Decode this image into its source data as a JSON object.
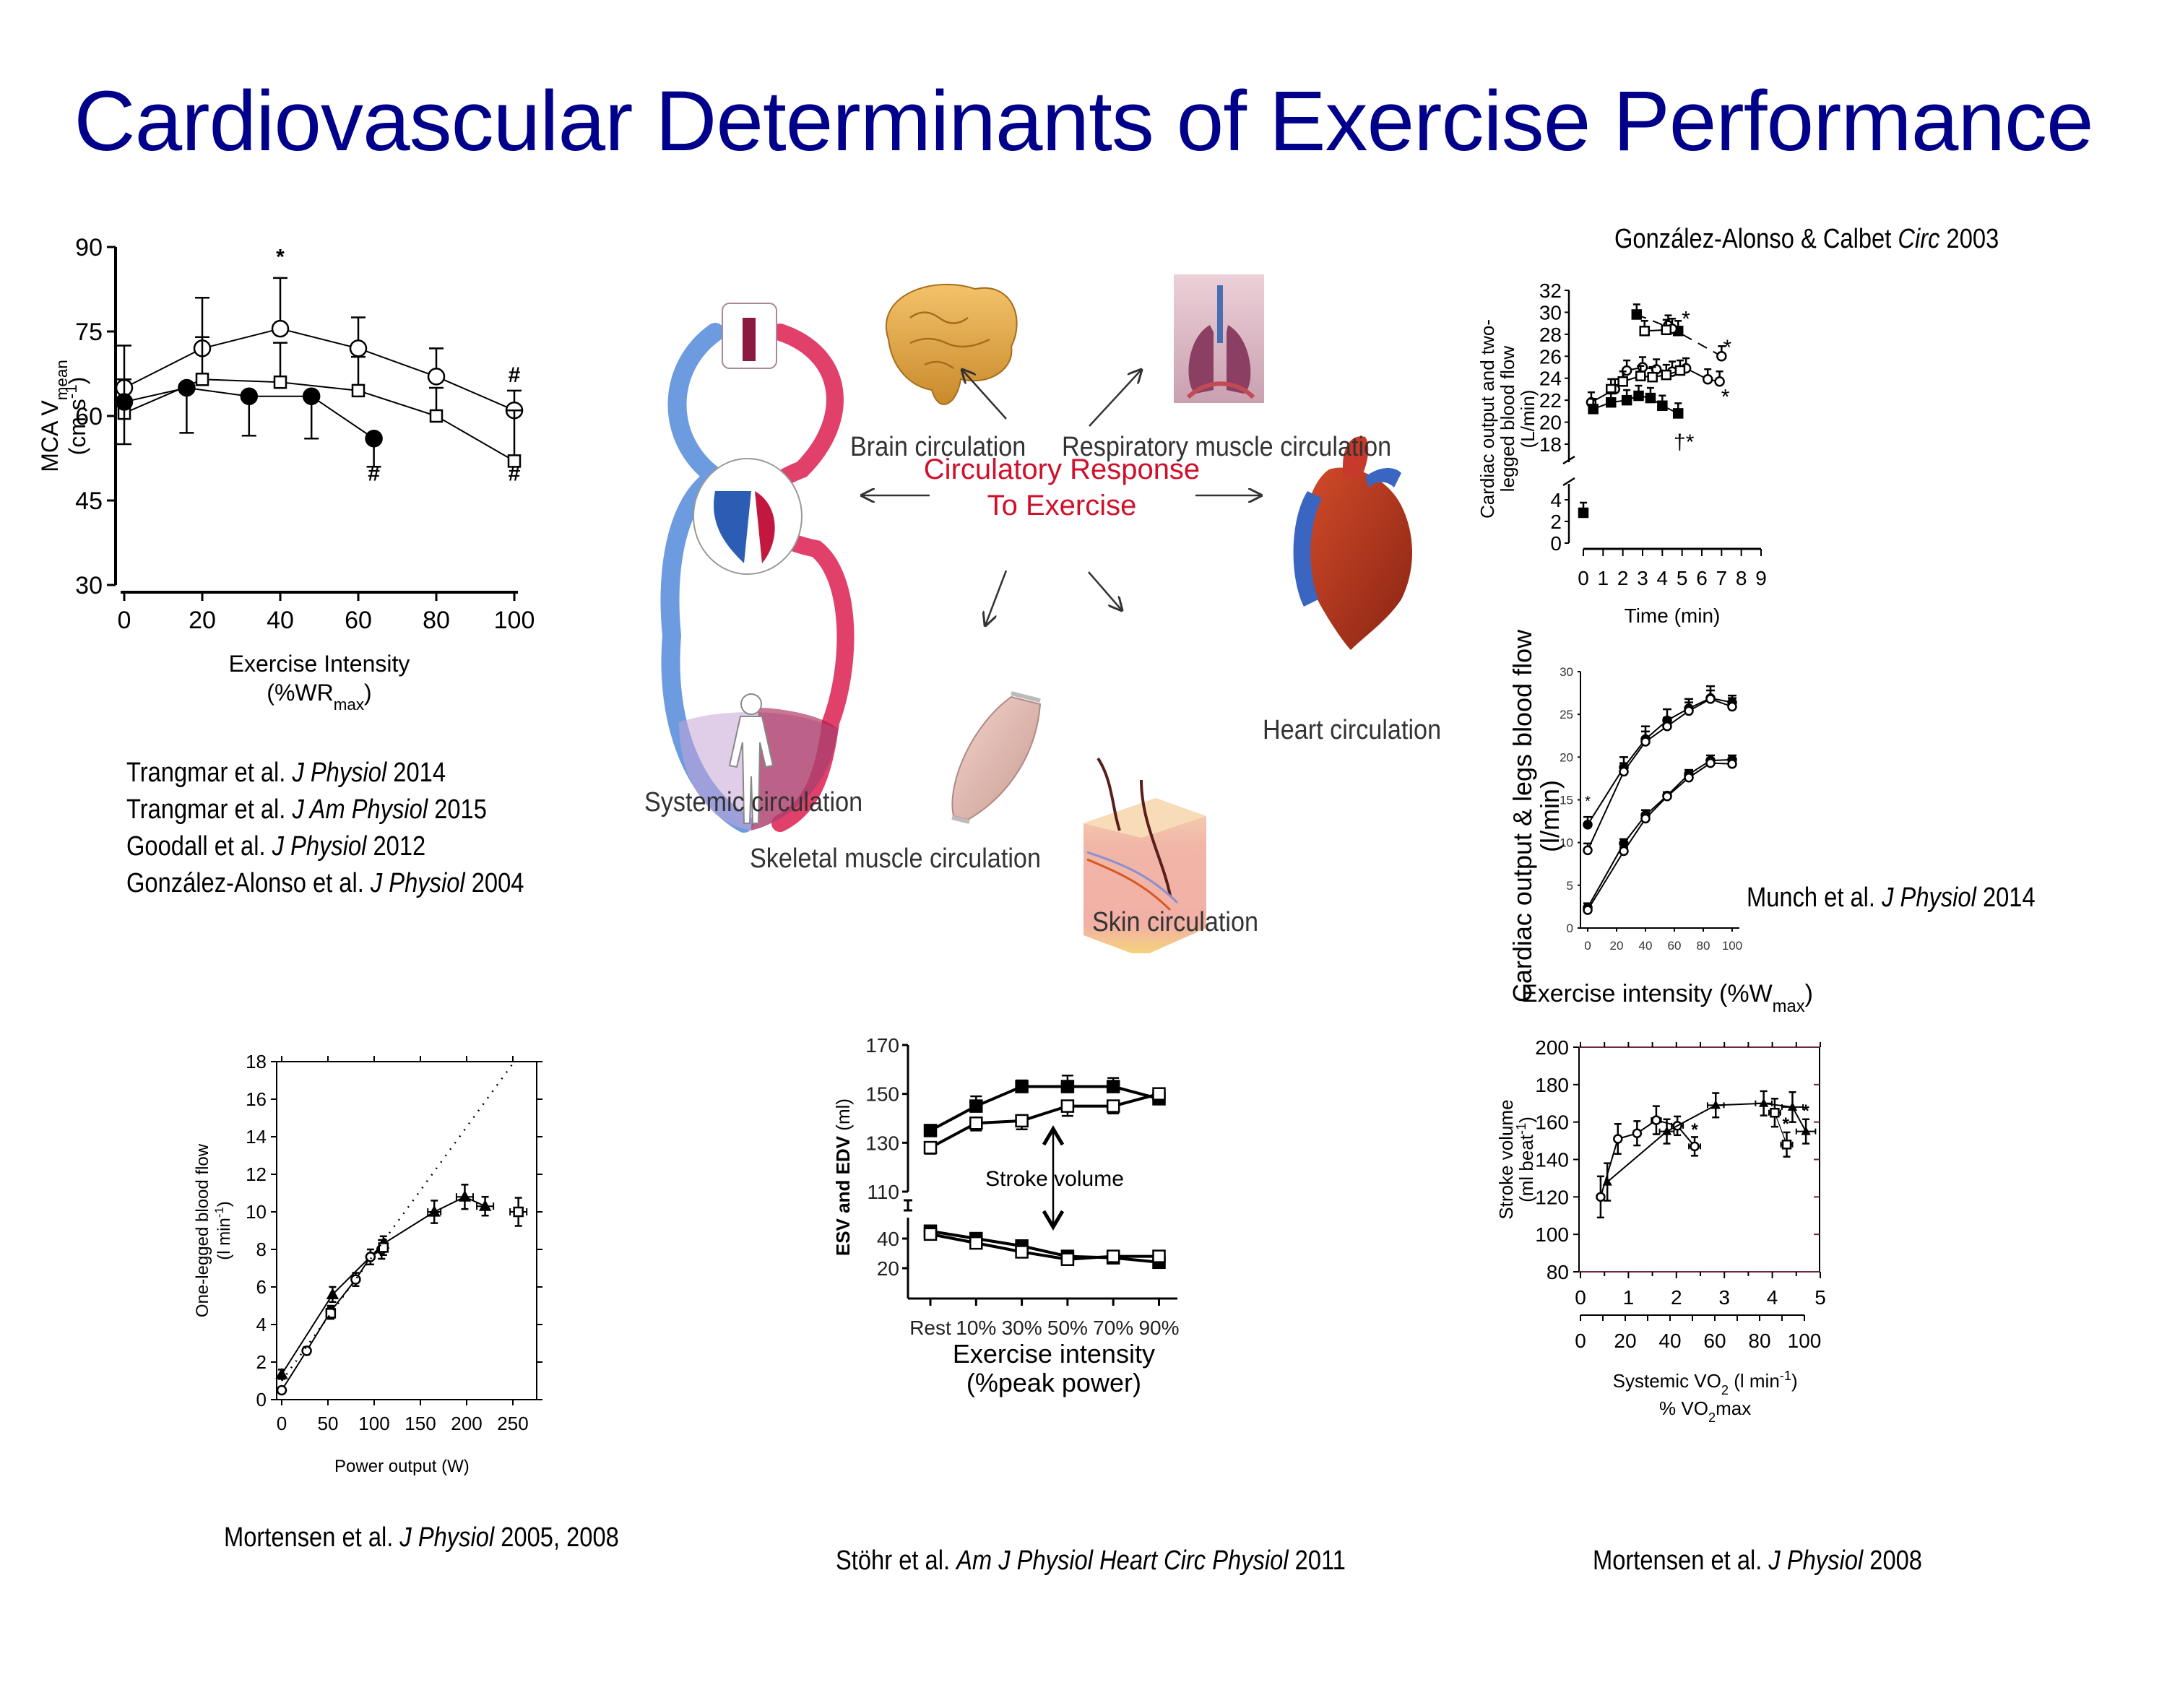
{
  "slide": {
    "title": "Cardiovascular Determinants of Exercise Performance"
  },
  "citations": {
    "top_left": [
      {
        "authors": "Trangmar et al. ",
        "journal": "J Physiol",
        "year": " 2014"
      },
      {
        "authors": "Trangmar et al. ",
        "journal": "J Am Physiol",
        "year": " 2015"
      },
      {
        "authors": "Goodall et al. ",
        "journal": "J Physiol",
        "year": " 2012"
      },
      {
        "authors": "González-Alonso et al. ",
        "journal": "J Physiol",
        "year": "  2004"
      }
    ],
    "top_right": {
      "authors": "González-Alonso & Calbet ",
      "journal": "Circ",
      "year": " 2003"
    },
    "mid_right": {
      "authors": "Munch et al. ",
      "journal": "J Physiol",
      "year": "  2014"
    },
    "bottom_left": {
      "authors": "Mortensen et al. ",
      "journal": "J Physiol",
      "year": "  2005, 2008"
    },
    "bottom_center": {
      "authors": "Stöhr et al. ",
      "journal": "Am J Physiol Heart Circ Physiol",
      "year": " 2011"
    },
    "bottom_right": {
      "authors": "Mortensen et al. ",
      "journal": "J Physiol",
      "year": "  2008"
    }
  },
  "diagram": {
    "center_line1": "Circulatory Response",
    "center_line2": "To Exercise",
    "labels": {
      "brain": "Brain circulation",
      "respiratory": "Respiratory muscle circulation",
      "heart": "Heart circulation",
      "systemic": "Systemic circulation",
      "skeletal": "Skeletal muscle circulation",
      "skin": "Skin circulation"
    },
    "colors": {
      "center": "#d0102b",
      "artery": "#d8264f",
      "vein": "#4a7fd0"
    }
  },
  "chart_data": [
    {
      "id": "mca",
      "type": "line",
      "title": "",
      "xlabel": "Exercise Intensity",
      "xlabel2": "(%WR",
      "xlabel2_sub": "max",
      "xlabel2_end": ")",
      "ylabel": "MCA V",
      "ylabel_sub": "mean",
      "ylabel2": "(cm s",
      "ylabel2_sup": "-1",
      "ylabel2_end": ")",
      "xlim": [
        0,
        100
      ],
      "ylim": [
        30,
        90
      ],
      "xticks": [
        0,
        20,
        40,
        60,
        80,
        100
      ],
      "yticks": [
        30,
        45,
        60,
        75,
        90
      ],
      "grid": false,
      "series": [
        {
          "name": "open-circle",
          "marker": "circle-open",
          "x": [
            0,
            20,
            40,
            60,
            80,
            100
          ],
          "y": [
            65,
            72,
            75.5,
            72,
            67,
            61
          ],
          "err": [
            7.5,
            9,
            9,
            5.5,
            5,
            3.5
          ],
          "err_dir": "up"
        },
        {
          "name": "open-square",
          "marker": "square-open",
          "x": [
            0,
            20,
            40,
            60,
            80,
            100
          ],
          "y": [
            60.5,
            66.5,
            66,
            64.5,
            60,
            52
          ],
          "err": [
            6,
            7.5,
            7,
            6,
            5,
            9
          ],
          "err_dir": "up"
        },
        {
          "name": "filled-circle",
          "marker": "circle-filled",
          "x": [
            0,
            16,
            32,
            48,
            64
          ],
          "y": [
            62.5,
            65,
            63.5,
            63.5,
            56
          ],
          "err": [
            7.5,
            8,
            7,
            7.5,
            5
          ],
          "err_dir": "down"
        }
      ],
      "annotations": [
        {
          "text": "*",
          "x": 40,
          "y": 87
        },
        {
          "text": "#",
          "x": 64,
          "y": 48.5
        },
        {
          "text": "#",
          "x": 100,
          "y": 66
        },
        {
          "text": "#",
          "x": 100,
          "y": 48.5
        }
      ]
    },
    {
      "id": "gonzalez",
      "type": "line",
      "title": "González-Alonso & Calbet Circ 2003",
      "xlabel": "Time (min)",
      "ylabel": "Cardiac output and two-",
      "ylabel2": "legged blood flow",
      "ylabel3": "(L/min)",
      "xlim": [
        0,
        9
      ],
      "ylim_upper": [
        18,
        32
      ],
      "ylim_lower": [
        0,
        4
      ],
      "xticks": [
        0,
        1,
        2,
        3,
        4,
        5,
        6,
        7,
        8,
        9
      ],
      "yticks_upper": [
        18,
        20,
        22,
        24,
        26,
        28,
        30,
        32
      ],
      "yticks_lower": [
        0,
        2,
        4
      ],
      "axis_break": true,
      "grid": false,
      "series": [
        {
          "name": "cardiac-output-open-circle",
          "marker": "circle-open",
          "x": [
            0.4,
            1.6,
            2.2,
            3.0,
            3.7,
            4.5,
            5.2,
            6.3,
            6.9
          ],
          "y": [
            21.8,
            23,
            24.7,
            25,
            24.8,
            24.6,
            24.9,
            23.9,
            23.7
          ]
        },
        {
          "name": "cardiac-output-open-square",
          "marker": "square-open",
          "x": [
            1.4,
            2.0,
            2.9,
            3.5,
            4.2,
            4.9
          ],
          "y": [
            23,
            23.7,
            24.2,
            24.1,
            24.3,
            24.7
          ]
        },
        {
          "name": "leg-flow-filled-square",
          "marker": "square-filled",
          "x": [
            0.5,
            1.4,
            2.2,
            2.8,
            3.4,
            4.0,
            4.8
          ],
          "y": [
            21.2,
            21.8,
            22,
            22.4,
            22.2,
            21.5,
            20.8
          ]
        },
        {
          "name": "heat-filled-square-dashed",
          "marker": "square-filled",
          "dashed": true,
          "x": [
            2.7,
            4.8
          ],
          "y": [
            29.8,
            28.3
          ]
        },
        {
          "name": "heat-open-circle-dashed",
          "marker": "circle-open",
          "dashed": true,
          "x": [
            4.3,
            4.5,
            7.0
          ],
          "y": [
            28.8,
            28.5,
            26
          ]
        },
        {
          "name": "heat-open-square",
          "marker": "square-open",
          "x": [
            3.1,
            4.2
          ],
          "y": [
            28.3,
            28.4
          ]
        },
        {
          "name": "rest",
          "marker": "square-filled",
          "x": [
            0
          ],
          "y": [
            2.8
          ]
        }
      ],
      "annotations": [
        {
          "text": "*",
          "x": 4.9,
          "y": 29.4
        },
        {
          "text": "*",
          "x": 7.0,
          "y": 26.8
        },
        {
          "text": "*",
          "x": 6.9,
          "y": 22.3
        },
        {
          "text": "†*",
          "x": 4.8,
          "y": 18.2
        }
      ]
    },
    {
      "id": "munch",
      "type": "line",
      "title": "",
      "xlabel": "Exercise intensity (%W",
      "xlabel_sub": "max",
      "xlabel_end": ")",
      "ylabel": "Cardiac output & legs blood flow",
      "ylabel2": "(l/min)",
      "xlim": [
        0,
        100
      ],
      "ylim": [
        0,
        30
      ],
      "xticks": [
        0,
        20,
        40,
        60,
        80,
        100
      ],
      "yticks": [
        0,
        5,
        10,
        15,
        20,
        25,
        30
      ],
      "grid": false,
      "series": [
        {
          "name": "cardiac-output-filled",
          "marker": "circle-filled",
          "x": [
            0,
            25,
            40,
            55,
            70,
            85,
            100
          ],
          "y": [
            12.1,
            18.8,
            22.1,
            24.3,
            25.7,
            26.9,
            26.4
          ],
          "err": [
            0.9,
            1.2,
            1.5,
            1.3,
            1.1,
            1.4,
            0.8
          ]
        },
        {
          "name": "cardiac-output-open",
          "marker": "circle-open",
          "x": [
            0,
            25,
            40,
            55,
            70,
            85,
            100
          ],
          "y": [
            9.1,
            18.3,
            21.8,
            23.6,
            25.4,
            26.8,
            25.9
          ],
          "err": [
            0.8,
            1.0,
            1.2,
            1.0,
            1.0,
            1.0,
            1.0
          ]
        },
        {
          "name": "legs-flow-filled",
          "marker": "circle-filled",
          "x": [
            0,
            25,
            40,
            55,
            70,
            85,
            100
          ],
          "y": [
            2.4,
            9.9,
            13.2,
            15.5,
            18.0,
            19.6,
            19.7
          ],
          "err": [
            0.5,
            0.5,
            0.6,
            0.4,
            0.5,
            0.6,
            0.5
          ]
        },
        {
          "name": "legs-flow-open",
          "marker": "circle-open",
          "x": [
            0,
            25,
            40,
            55,
            70,
            85,
            100
          ],
          "y": [
            2.1,
            9.0,
            12.8,
            15.4,
            17.6,
            19.3,
            19.2
          ],
          "err": [
            0.4,
            0.4,
            0.5,
            0.4,
            0.4,
            0.5,
            0.5
          ]
        }
      ],
      "annotations": [
        {
          "text": "*",
          "x": 0,
          "y": 14.3
        }
      ]
    },
    {
      "id": "mortensen-flow",
      "type": "line",
      "title": "",
      "xlabel": "Power output (W)",
      "ylabel": "One-legged blood flow",
      "ylabel2": "(l min",
      "ylabel2_sup": "-1",
      "ylabel2_end": ")",
      "xlim": [
        -5,
        275
      ],
      "ylim": [
        0,
        18
      ],
      "xticks": [
        0,
        50,
        100,
        150,
        200,
        250
      ],
      "yticks": [
        0,
        2,
        4,
        6,
        8,
        10,
        12,
        14,
        16,
        18
      ],
      "grid": false,
      "series": [
        {
          "name": "filled-triangle",
          "marker": "triangle-filled",
          "x": [
            0,
            55,
            110,
            165,
            198,
            220
          ],
          "y": [
            1.35,
            5.6,
            8.3,
            10.0,
            10.8,
            10.3
          ],
          "err": [
            0.25,
            0.4,
            0.4,
            0.6,
            0.65,
            0.5
          ],
          "xerr": [
            0,
            0,
            0,
            7,
            9,
            9
          ]
        },
        {
          "name": "open-circle",
          "marker": "circle-open",
          "x": [
            0,
            27,
            53,
            80,
            96,
            108
          ],
          "y": [
            0.5,
            2.6,
            4.7,
            6.4,
            7.6,
            8.0
          ],
          "err": [
            0.1,
            0.2,
            0.3,
            0.35,
            0.4,
            0.5
          ],
          "xerr": [
            0,
            0,
            0,
            0,
            0,
            0
          ]
        },
        {
          "name": "open-square",
          "marker": "square-open",
          "x": [
            53,
            110,
            256
          ],
          "y": [
            4.6,
            8.1,
            10.0
          ],
          "err": [
            0.3,
            0.4,
            0.75
          ],
          "xerr": [
            0,
            0,
            9
          ]
        },
        {
          "name": "linear-extrapolation",
          "style": "dotted",
          "x": [
            0,
            250
          ],
          "y": [
            1.0,
            17.9
          ]
        }
      ]
    },
    {
      "id": "stohr",
      "type": "line",
      "title": "",
      "xlabel": "Exercise intensity",
      "xlabel2": "(%peak power)",
      "ylabel": "ESV and EDV",
      "ylabel_unit": " (ml)",
      "categories": [
        "Rest",
        "10%",
        "30%",
        "50%",
        "70%",
        "90%"
      ],
      "yticks": [
        20,
        40,
        110,
        130,
        150,
        170
      ],
      "axis_break": true,
      "annotation": "Stroke volume",
      "grid": false,
      "series": [
        {
          "name": "EDV-filled",
          "marker": "square-filled",
          "y": [
            135,
            145,
            153,
            153,
            153,
            148
          ],
          "err": [
            1.5,
            4,
            2.5,
            4.5,
            3.5,
            2
          ]
        },
        {
          "name": "EDV-open",
          "marker": "square-open",
          "y": [
            128,
            138,
            139,
            145,
            145,
            150
          ],
          "err": [
            2.5,
            3,
            3.5,
            4,
            3,
            4
          ]
        },
        {
          "name": "ESV-filled",
          "marker": "square-filled",
          "y": [
            45,
            40,
            35,
            28,
            27,
            24
          ],
          "err": [
            0,
            0,
            0,
            0,
            0,
            0
          ]
        },
        {
          "name": "ESV-open",
          "marker": "square-open",
          "y": [
            43,
            37,
            31,
            26,
            28,
            28
          ],
          "err": [
            0,
            0,
            0,
            0,
            0,
            0
          ]
        }
      ]
    },
    {
      "id": "mortensen-sv",
      "type": "line",
      "title": "",
      "xlabel": "Systemic VO",
      "xlabel_sub": "2",
      "xlabel_end": " (l min",
      "xlabel_sup": "-1",
      "xlabel_end2": ")",
      "xlabel2": "% VO",
      "xlabel2_sub": "2",
      "xlabel2_end": "max",
      "ylabel": "Stroke volume",
      "ylabel2": "(ml beat",
      "ylabel2_sup": "-1",
      "ylabel2_end": ")",
      "xlim": [
        0,
        5
      ],
      "ylim": [
        80,
        200
      ],
      "xticks": [
        0,
        1,
        2,
        3,
        4,
        5
      ],
      "xticks2": [
        0,
        20,
        40,
        60,
        80,
        100
      ],
      "yticks": [
        80,
        100,
        120,
        140,
        160,
        180,
        200
      ],
      "grid": false,
      "series": [
        {
          "name": "open-circle",
          "marker": "circle-open",
          "x": [
            0.42,
            0.78,
            1.18,
            1.58,
            2.02,
            2.38
          ],
          "y": [
            120,
            151,
            154,
            161,
            158,
            147
          ],
          "err": [
            11,
            8,
            6.5,
            7.5,
            5,
            5
          ],
          "xerr": [
            0,
            0,
            0,
            0.1,
            0.12,
            0.12
          ]
        },
        {
          "name": "filled-triangle",
          "marker": "triangle-filled",
          "x": [
            0.56,
            1.8,
            2.82,
            3.82,
            4.42,
            4.7
          ],
          "y": [
            128,
            155,
            169,
            170,
            168,
            155
          ],
          "err": [
            10,
            6.5,
            6.5,
            6.5,
            8,
            6.5
          ],
          "xerr": [
            0,
            0.15,
            0.17,
            0.17,
            0.22,
            0.2
          ]
        },
        {
          "name": "open-square",
          "marker": "square-open",
          "x": [
            4.05,
            4.3
          ],
          "y": [
            165,
            148
          ],
          "err": [
            7.5,
            6.5
          ],
          "xerr": [
            0.12,
            0.12
          ]
        }
      ],
      "annotations": [
        {
          "text": "*",
          "x": 2.38,
          "y": 153
        },
        {
          "text": "*",
          "x": 4.28,
          "y": 156
        },
        {
          "text": "*",
          "x": 4.7,
          "y": 163
        }
      ]
    }
  ]
}
